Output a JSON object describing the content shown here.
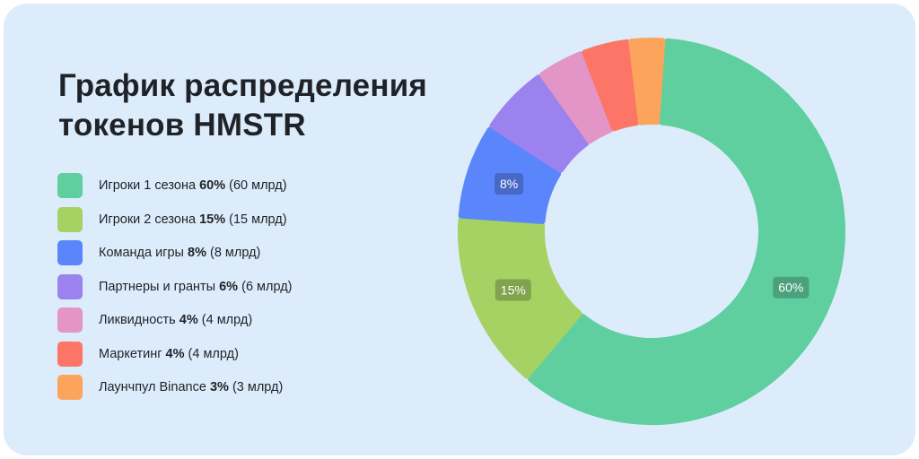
{
  "title_lines": [
    "График распределения",
    "токенов HMSTR"
  ],
  "chart_data": {
    "type": "pie",
    "title": "График распределения токенов HMSTR",
    "donut": true,
    "legend_position": "left",
    "slices": [
      {
        "label": "Игроки 1 сезона",
        "percent_text": "60%",
        "amount": "(60 млрд)",
        "value": 60,
        "color": "#5fcf9f",
        "show_label": true
      },
      {
        "label": "Игроки 2 сезона",
        "percent_text": "15%",
        "amount": "(15 млрд)",
        "value": 15,
        "color": "#a6d163",
        "show_label": true
      },
      {
        "label": "Команда игры",
        "percent_text": "8%",
        "amount": "(8 млрд)",
        "value": 8,
        "color": "#5b86fb",
        "show_label": true
      },
      {
        "label": "Партнеры и гранты",
        "percent_text": "6%",
        "amount": "(6 млрд)",
        "value": 6,
        "color": "#9b82ef",
        "show_label": false
      },
      {
        "label": "Ликвидность",
        "percent_text": "4%",
        "amount": "(4 млрд)",
        "value": 4,
        "color": "#e295c6",
        "show_label": false
      },
      {
        "label": "Маркетинг",
        "percent_text": "4%",
        "amount": "(4 млрд)",
        "value": 4,
        "color": "#fc7566",
        "show_label": false
      },
      {
        "label": "Лаунчпул Binance",
        "percent_text": "3%",
        "amount": "(3 млрд)",
        "value": 3,
        "color": "#fca45c",
        "show_label": false
      }
    ]
  }
}
